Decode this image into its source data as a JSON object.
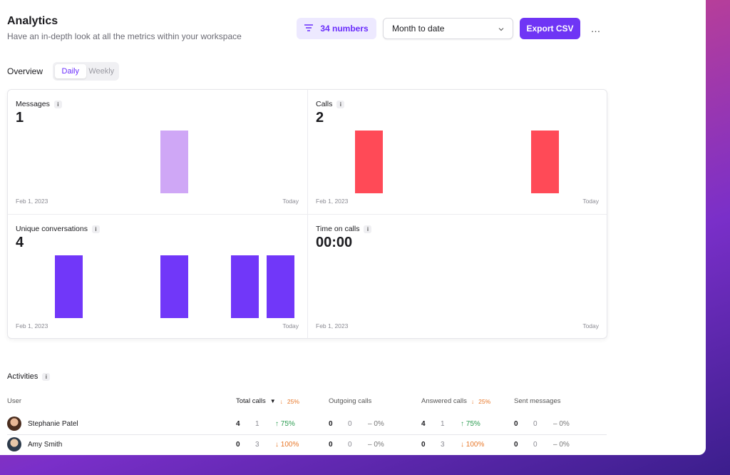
{
  "header": {
    "title": "Analytics",
    "subtitle": "Have an in-depth look at all the metrics within your workspace",
    "filter_label": "34 numbers",
    "period_select": "Month to date",
    "export_label": "Export CSV",
    "more_label": "…"
  },
  "overview": {
    "label": "Overview",
    "tabs": [
      "Daily",
      "Weekly"
    ],
    "active_tab": "Daily"
  },
  "panels": [
    {
      "title": "Messages",
      "value": "1",
      "start": "Feb 1, 2023",
      "end": "Today",
      "color": "#cfa7f6"
    },
    {
      "title": "Calls",
      "value": "2",
      "start": "Feb 1, 2023",
      "end": "Today",
      "color": "#ff4a57"
    },
    {
      "title": "Unique conversations",
      "value": "4",
      "start": "Feb 1, 2023",
      "end": "Today",
      "color": "#7137f9"
    },
    {
      "title": "Time on calls",
      "value": "00:00",
      "start": "Feb 1, 2023",
      "end": "Today",
      "color": "#7137f9"
    }
  ],
  "activities": {
    "title": "Activities",
    "columns": {
      "user": "User",
      "total_calls": {
        "label": "Total calls",
        "trend": "25%",
        "direction": "down"
      },
      "outgoing_calls": {
        "label": "Outgoing calls"
      },
      "answered_calls": {
        "label": "Answered calls",
        "trend": "25%",
        "direction": "down"
      },
      "sent_messages": {
        "label": "Sent messages"
      }
    },
    "rows": [
      {
        "name": "Stephanie Patel",
        "total": {
          "current": "4",
          "previous": "1",
          "trend": "75%",
          "direction": "up"
        },
        "outgoing": {
          "current": "0",
          "previous": "0",
          "trend": "0%",
          "direction": "flat"
        },
        "answered": {
          "current": "4",
          "previous": "1",
          "trend": "75%",
          "direction": "up"
        },
        "messages": {
          "current": "0",
          "previous": "0",
          "trend": "0%",
          "direction": "flat"
        }
      },
      {
        "name": "Amy Smith",
        "total": {
          "current": "0",
          "previous": "3",
          "trend": "100%",
          "direction": "down"
        },
        "outgoing": {
          "current": "0",
          "previous": "0",
          "trend": "0%",
          "direction": "flat"
        },
        "answered": {
          "current": "0",
          "previous": "3",
          "trend": "100%",
          "direction": "down"
        },
        "messages": {
          "current": "0",
          "previous": "0",
          "trend": "0%",
          "direction": "flat"
        }
      }
    ]
  }
}
